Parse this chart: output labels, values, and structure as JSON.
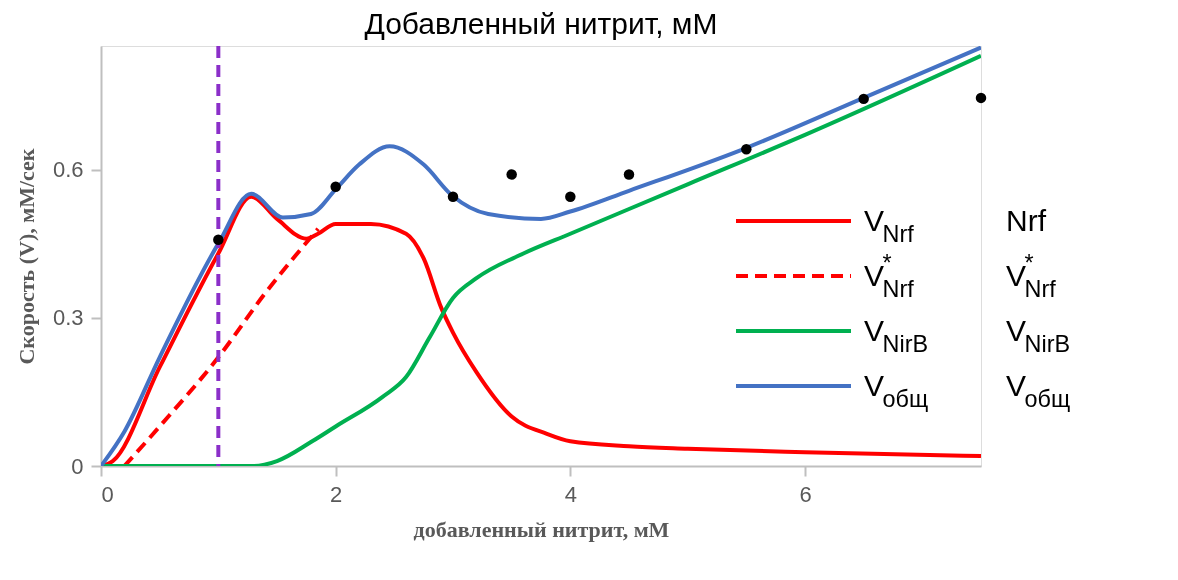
{
  "chart_data": {
    "type": "line",
    "title": "Добавленный нитрит, мМ",
    "xlabel": "добавленный нитрит, мМ",
    "ylabel": "Скорость (V), мМ/сек",
    "xlim": [
      0,
      7.5
    ],
    "ylim": [
      0,
      0.85
    ],
    "xticks": [
      0,
      2,
      4,
      6
    ],
    "yticks": [
      0,
      0.3,
      0.6
    ],
    "legend": "right",
    "series": [
      {
        "name": "V$_{Nrf}$",
        "color": "#ff0000",
        "line_style": "solid",
        "x": [
          0,
          0.1,
          0.5,
          1.0,
          1.28,
          1.5,
          1.75,
          1.85,
          2.0,
          2.3,
          2.6,
          2.75,
          2.9,
          3.0,
          3.2,
          3.5,
          3.8,
          4.0,
          4.5,
          5.0,
          6.0,
          7.5
        ],
        "values": [
          0,
          0.01,
          0.2,
          0.43,
          0.545,
          0.5,
          0.46,
          0.47,
          0.49,
          0.49,
          0.47,
          0.42,
          0.32,
          0.27,
          0.19,
          0.1,
          0.065,
          0.05,
          0.04,
          0.035,
          0.028,
          0.02
        ]
      },
      {
        "name": "V$^{*}$$_{Nrf}$",
        "color": "#ff0000",
        "line_style": "dashed",
        "x": [
          0.2,
          0.5,
          1.0,
          1.4,
          1.85
        ],
        "values": [
          0,
          0.08,
          0.22,
          0.35,
          0.48
        ]
      },
      {
        "name": "V$_{NirB}$",
        "color": "#00b050",
        "line_style": "solid",
        "x": [
          0,
          1.0,
          1.3,
          1.5,
          1.8,
          2.0,
          2.4,
          2.6,
          2.8,
          3.0,
          3.2,
          3.6,
          4.0,
          5.0,
          6.0,
          7.5
        ],
        "values": [
          0,
          0,
          0,
          0.01,
          0.05,
          0.08,
          0.14,
          0.18,
          0.26,
          0.34,
          0.38,
          0.43,
          0.47,
          0.57,
          0.67,
          0.83
        ]
      },
      {
        "name": "V$_{общ}$",
        "color": "#4472c4",
        "line_style": "solid",
        "x": [
          0,
          0.2,
          0.5,
          1.0,
          1.28,
          1.55,
          1.79,
          2.0,
          2.2,
          2.46,
          2.75,
          2.99,
          3.3,
          3.75,
          4.0,
          4.5,
          5.46,
          6.5,
          7.5
        ],
        "values": [
          0,
          0.07,
          0.22,
          0.45,
          0.551,
          0.503,
          0.51,
          0.56,
          0.61,
          0.647,
          0.61,
          0.548,
          0.51,
          0.5,
          0.515,
          0.557,
          0.64,
          0.745,
          0.847
        ]
      },
      {
        "type": "scatter",
        "color": "#000000",
        "x": [
          1,
          2,
          3,
          3.5,
          4,
          4.5,
          5.5,
          6.5,
          7.5
        ],
        "values": [
          0.458,
          0.565,
          0.545,
          0.59,
          0.545,
          0.59,
          0.641,
          0.743,
          0.745
        ]
      }
    ],
    "ref_lines": [
      {
        "axis": "x",
        "value": 1,
        "color": "#8b2fc9",
        "line_style": "dashed"
      }
    ],
    "annotations": [
      "Nrf",
      "V$^{*}$$_{Nrf}$",
      "V$_{NirB}$",
      "V$_{общ}$"
    ]
  }
}
